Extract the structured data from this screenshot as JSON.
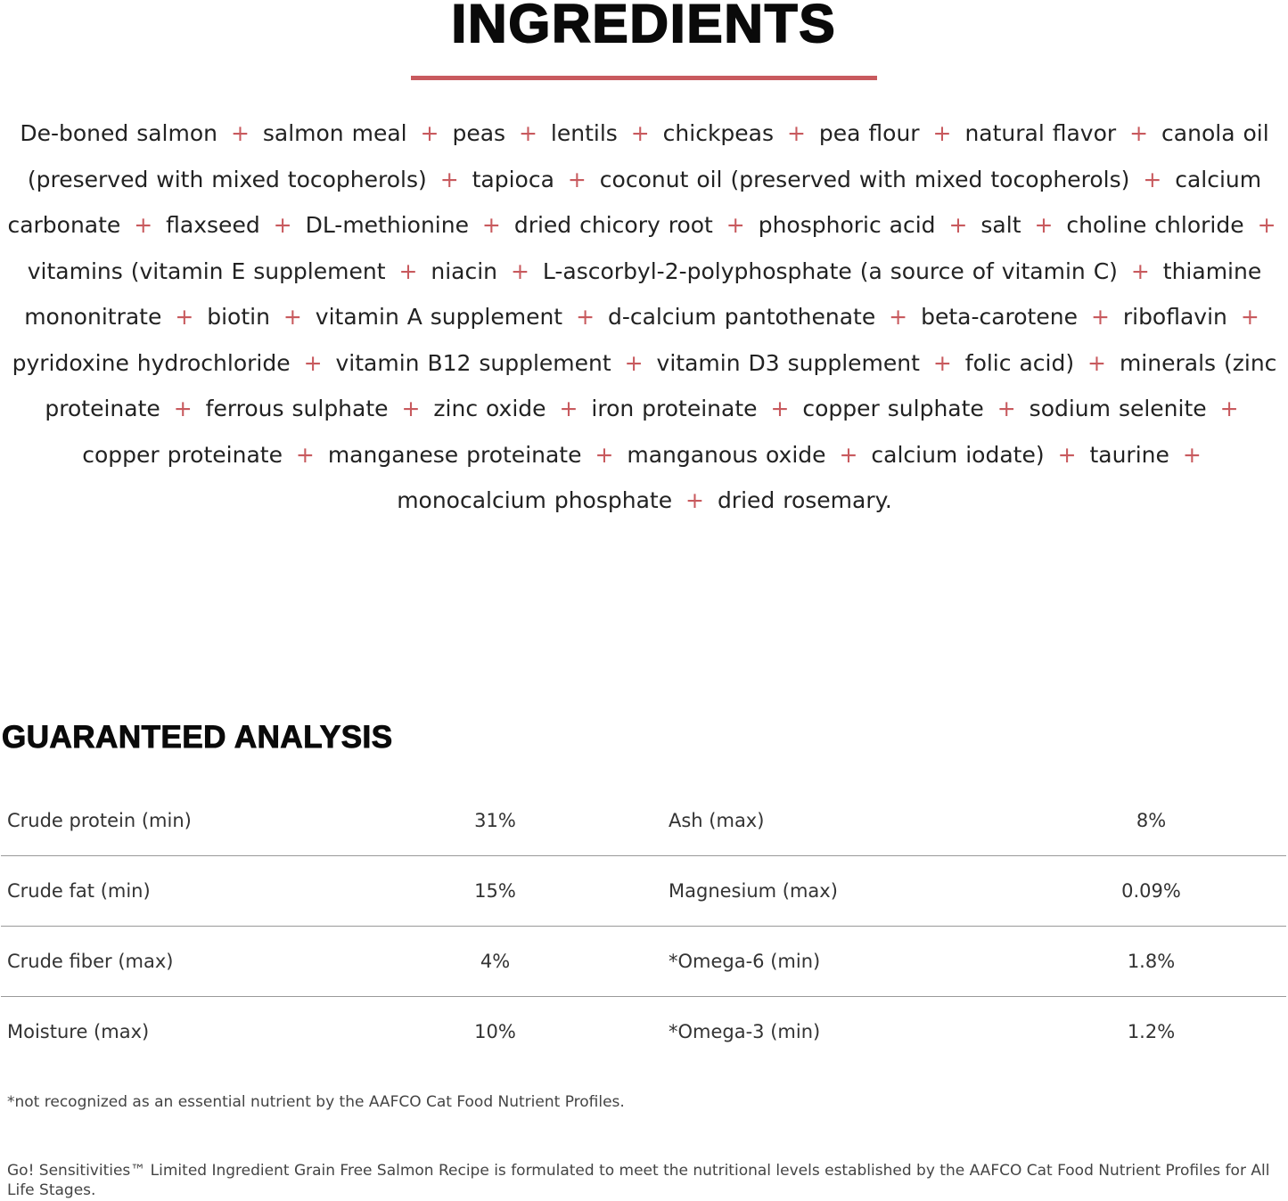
{
  "ingredients": {
    "title": "INGREDIENTS",
    "accent_color": "#c85a5e",
    "separator": "+",
    "items": [
      "De-boned salmon",
      "salmon meal",
      "peas",
      "lentils",
      "chickpeas",
      "pea flour",
      "natural flavor",
      "canola oil (preserved with mixed tocopherols)",
      "tapioca",
      "coconut oil (preserved with mixed tocopherols)",
      "calcium carbonate",
      "flaxseed",
      "DL-methionine",
      "dried chicory root",
      "phosphoric acid",
      "salt",
      "choline chloride",
      "vitamins (vitamin E supplement",
      "niacin",
      "L-ascorbyl-2-polyphosphate (a source of vitamin C)",
      "thiamine mononitrate",
      "biotin",
      "vitamin A supplement",
      "d-calcium pantothenate",
      "beta-carotene",
      "riboflavin",
      "pyridoxine hydrochloride",
      "vitamin B12 supplement",
      "vitamin D3 supplement",
      "folic acid)",
      "minerals (zinc proteinate",
      "ferrous sulphate",
      "zinc oxide",
      "iron proteinate",
      "copper sulphate",
      "sodium selenite",
      "copper proteinate",
      "manganese proteinate",
      "manganous oxide",
      "calcium iodate)",
      "taurine",
      "monocalcium phosphate",
      "dried rosemary."
    ]
  },
  "analysis": {
    "title": "GUARANTEED ANALYSIS",
    "rows": [
      {
        "label1": "Crude protein (min)",
        "value1": "31%",
        "label2": "Ash (max)",
        "value2": "8%"
      },
      {
        "label1": "Crude fat (min)",
        "value1": "15%",
        "label2": "Magnesium (max)",
        "value2": "0.09%"
      },
      {
        "label1": "Crude fiber (max)",
        "value1": "4%",
        "label2": "*Omega-6 (min)",
        "value2": "1.8%"
      },
      {
        "label1": "Moisture (max)",
        "value1": "10%",
        "label2": "*Omega-3 (min)",
        "value2": "1.2%"
      }
    ],
    "note": "*not recognized as an essential nutrient by the AAFCO Cat Food Nutrient Profiles.",
    "footer": "Go! Sensitivities™ Limited Ingredient Grain Free Salmon Recipe is formulated to meet the nutritional levels established by the AAFCO Cat Food Nutrient Profiles for All Life Stages."
  }
}
